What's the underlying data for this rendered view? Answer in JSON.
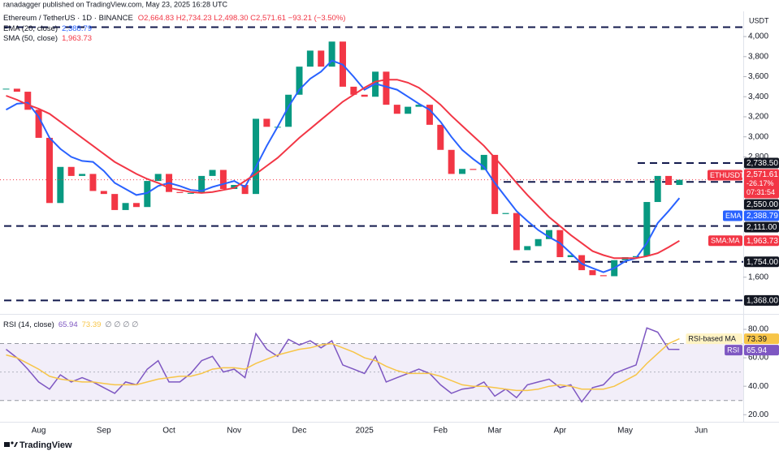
{
  "header": {
    "publisher": "ranadagger published on TradingView.com, May 23, 2025 16:28 UTC",
    "unit": "USDT",
    "footer": "TradingView"
  },
  "chart_data": [
    {
      "type": "candlestick",
      "title": "Ethereum / TetherUS · 1D · BINANCE",
      "ohlc": "O2,664.83 H2,734.23 L2,498.30 C2,571.61 −93.21 (−3.50%)",
      "categories": [
        null,
        null,
        null,
        "Aug",
        null,
        null,
        null,
        null,
        null,
        "Sep",
        null,
        null,
        null,
        null,
        null,
        "Oct",
        null,
        null,
        null,
        null,
        null,
        "Nov",
        null,
        null,
        null,
        null,
        null,
        "Dec",
        null,
        null,
        null,
        null,
        null,
        "2025",
        null,
        null,
        null,
        null,
        null,
        null,
        "Feb",
        null,
        null,
        null,
        null,
        "Mar",
        null,
        null,
        null,
        null,
        null,
        "Apr",
        null,
        null,
        null,
        null,
        null,
        "May",
        null,
        null,
        null,
        null,
        null,
        null,
        "Jun"
      ],
      "series": [
        {
          "name": "ETHUSDT",
          "values": [
            3480,
            3450,
            3270,
            2990,
            2340,
            2700,
            2610,
            2630,
            2460,
            2430,
            2270,
            2340,
            2300,
            2560,
            2630,
            2450,
            2440,
            2440,
            2610,
            2670,
            2480,
            2520,
            2430,
            3180,
            3100,
            3100,
            3420,
            3700,
            3860,
            3700,
            3950,
            3500,
            3420,
            3400,
            3650,
            3320,
            3230,
            3300,
            3320,
            3120,
            2870,
            2630,
            2680,
            2670,
            2820,
            2230,
            2240,
            1870,
            1910,
            1980,
            2070,
            1800,
            1820,
            1670,
            1620,
            1610,
            1770,
            1800,
            1810,
            2350,
            2610,
            2520,
            2571.61,
            null,
            null
          ],
          "value_label": "2,571.61",
          "change": "-26.17%",
          "countdown": "07:31:54",
          "up_color": "#089981",
          "down_color": "#f23645"
        },
        {
          "name": "EMA (20, close)",
          "badge": "EMA",
          "value_label": "2,388.79",
          "color": "#2962ff",
          "values": [
            3270,
            3330,
            3340,
            3200,
            2990,
            2880,
            2800,
            2760,
            2750,
            2660,
            2540,
            2480,
            2420,
            2440,
            2510,
            2540,
            2510,
            2470,
            2460,
            2500,
            2530,
            2560,
            2500,
            2700,
            2910,
            3100,
            3300,
            3470,
            3580,
            3650,
            3760,
            3720,
            3600,
            3470,
            3530,
            3500,
            3470,
            3400,
            3330,
            3270,
            3150,
            3000,
            2870,
            2780,
            2700,
            2540,
            2400,
            2260,
            2160,
            2070,
            2000,
            1940,
            1840,
            1735,
            1690,
            1650,
            1690,
            1760,
            1790,
            1940,
            2140,
            2260,
            2388.79,
            null,
            null
          ]
        },
        {
          "name": "SMA (50, close)",
          "badge": "SMA:MA",
          "value_label": "1,963.73",
          "color": "#f23645",
          "values": [
            3410,
            3370,
            3320,
            3280,
            3230,
            3150,
            3070,
            2990,
            2910,
            2830,
            2750,
            2690,
            2630,
            2580,
            2540,
            2490,
            2470,
            2450,
            2440,
            2450,
            2470,
            2490,
            2560,
            2630,
            2710,
            2790,
            2890,
            2990,
            3080,
            3170,
            3260,
            3350,
            3420,
            3490,
            3550,
            3570,
            3570,
            3540,
            3490,
            3410,
            3320,
            3210,
            3110,
            3010,
            2910,
            2790,
            2670,
            2540,
            2420,
            2310,
            2200,
            2110,
            2020,
            1940,
            1860,
            1820,
            1790,
            1790,
            1790,
            1810,
            1840,
            1900,
            1963.73,
            null,
            null
          ]
        }
      ],
      "ylim": [
        1250,
        4300
      ],
      "yticks": [
        {
          "value": 4000,
          "label": "4,000"
        },
        {
          "value": 3800,
          "label": "3,800"
        },
        {
          "value": 3600,
          "label": "3,600"
        },
        {
          "value": 3400,
          "label": "3,400"
        },
        {
          "value": 3200,
          "label": "3,200"
        },
        {
          "value": 3000,
          "label": "3,000"
        },
        {
          "value": 2800,
          "label": "2,800"
        },
        {
          "value": 1600,
          "label": "1,600"
        }
      ],
      "levels": [
        {
          "value": 4094
        },
        {
          "value": 2738.5,
          "label": "2,738.50"
        },
        {
          "value": 2550,
          "label": "2,550.00"
        },
        {
          "value": 2111,
          "label": "2,111.00"
        },
        {
          "value": 1754,
          "label": "1,754.00"
        },
        {
          "value": 1368,
          "label": "1,368.00"
        }
      ]
    },
    {
      "type": "line",
      "title": "RSI (14, close)",
      "extra": "∅ ∅ ∅ ∅",
      "series": [
        {
          "name": "RSI",
          "value_label": "65.94",
          "color": "#7e57c2",
          "values": [
            66,
            60,
            52,
            43,
            38,
            48,
            43,
            46,
            43,
            39,
            35,
            43,
            41,
            52,
            58,
            43,
            43,
            49,
            58,
            61,
            50,
            52,
            46,
            77,
            66,
            61,
            73,
            69,
            72,
            67,
            72,
            55,
            52,
            49,
            61,
            43,
            46,
            49,
            52,
            49,
            41,
            35,
            38,
            39,
            43,
            33,
            38,
            32,
            41,
            43,
            45,
            39,
            41,
            29,
            39,
            41,
            49,
            52,
            55,
            81,
            78,
            66,
            65.94,
            null,
            null
          ]
        },
        {
          "name": "RSI-based MA",
          "value_label": "73.39",
          "color": "#f7c548",
          "values": [
            62,
            60,
            56,
            52,
            47,
            45,
            44,
            43,
            43,
            42,
            41,
            41,
            41,
            43,
            45,
            46,
            47,
            47,
            49,
            52,
            53,
            53,
            52,
            56,
            59,
            62,
            64,
            66,
            67,
            69,
            70,
            67,
            64,
            60,
            58,
            54,
            51,
            49,
            49,
            49,
            47,
            44,
            41,
            40,
            40,
            39,
            38,
            37,
            37,
            38,
            40,
            41,
            40,
            38,
            38,
            38,
            40,
            44,
            48,
            56,
            63,
            70,
            73.39,
            null,
            null
          ]
        }
      ],
      "ylim": [
        15,
        88
      ],
      "yticks": [
        {
          "value": 80,
          "label": "80.00"
        },
        {
          "value": 60,
          "label": "60.00"
        },
        {
          "value": 40,
          "label": "40.00"
        },
        {
          "value": 20,
          "label": "20.00"
        }
      ],
      "bands": {
        "upper": 70,
        "middle": 50,
        "lower": 30
      }
    }
  ]
}
